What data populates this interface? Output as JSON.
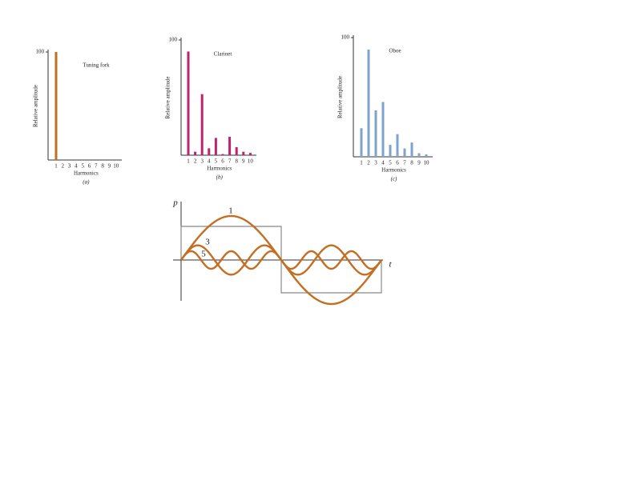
{
  "chart_data": [
    {
      "type": "bar",
      "title": "Tuning fork",
      "x_label": "Harmonics",
      "y_label": "Relative amplitude",
      "caption": "(a)",
      "categories": [
        "1",
        "2",
        "3",
        "4",
        "5",
        "6",
        "7",
        "8",
        "9",
        "10"
      ],
      "values": [
        100,
        0,
        0,
        0,
        0,
        0,
        0,
        0,
        0,
        0
      ],
      "color": "#c0701f",
      "ylim": [
        0,
        100
      ],
      "yticks": [
        100
      ]
    },
    {
      "type": "bar",
      "title": "Clarinet",
      "x_label": "Harmonics",
      "y_label": "Relative amplitude",
      "caption": "(b)",
      "categories": [
        "1",
        "2",
        "3",
        "4",
        "5",
        "6",
        "7",
        "8",
        "9",
        "10"
      ],
      "values": [
        90,
        3,
        53,
        6,
        15,
        1,
        16,
        7,
        3,
        2
      ],
      "color": "#c0226e",
      "ylim": [
        0,
        100
      ],
      "yticks": [
        100
      ]
    },
    {
      "type": "bar",
      "title": "Oboe",
      "x_label": "Harmonics",
      "y_label": "Relative amplitude",
      "caption": "(c)",
      "categories": [
        "1",
        "2",
        "3",
        "4",
        "5",
        "6",
        "7",
        "8",
        "9",
        "10"
      ],
      "values": [
        24,
        90,
        39,
        46,
        10,
        19,
        7,
        12,
        3,
        2
      ],
      "color": "#7fa3cf",
      "ylim": [
        0,
        100
      ],
      "yticks": [
        100
      ]
    }
  ],
  "waveform": {
    "y_label": "p",
    "x_label": "t",
    "curve_labels": [
      "1",
      "3",
      "5"
    ]
  }
}
